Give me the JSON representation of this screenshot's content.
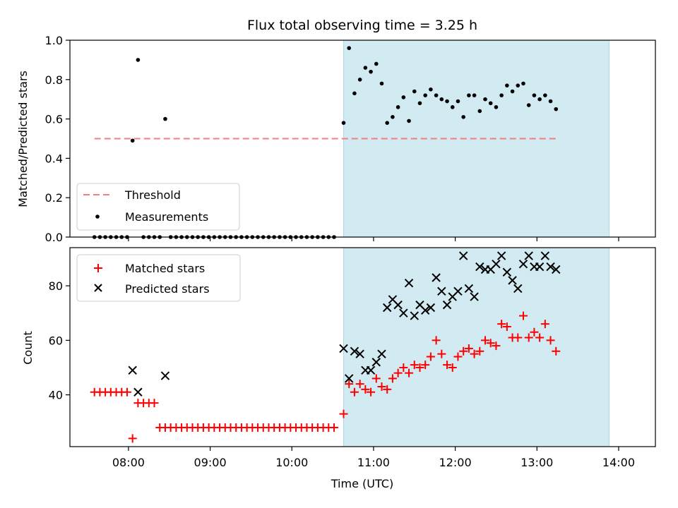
{
  "chart_data": {
    "title": "Flux total observing time = 3.25 h",
    "xlabel": "Time (UTC)",
    "x_ticks": [
      "08:00",
      "09:00",
      "10:00",
      "11:00",
      "12:00",
      "13:00",
      "14:00"
    ],
    "xlim": [
      "07:17",
      "14:27"
    ],
    "shaded_interval": [
      "10:38",
      "13:53"
    ],
    "colors": {
      "threshold": "#f08080",
      "measurements": "#000000",
      "matched": "#ff0000",
      "predicted": "#000000",
      "shade": "#add8e6"
    },
    "top": {
      "type": "scatter",
      "ylabel": "Matched/Predicted stars",
      "ylim": [
        0,
        1.0
      ],
      "y_ticks": [
        "0.0",
        "0.2",
        "0.4",
        "0.6",
        "0.8",
        "1.0"
      ],
      "threshold": 0.5,
      "legend": {
        "threshold": "Threshold",
        "measurements": "Measurements"
      },
      "points": [
        [
          "07:35",
          0
        ],
        [
          "07:39",
          0
        ],
        [
          "07:43",
          0
        ],
        [
          "07:47",
          0
        ],
        [
          "07:51",
          0
        ],
        [
          "07:55",
          0
        ],
        [
          "07:59",
          0
        ],
        [
          "08:03",
          0.49
        ],
        [
          "08:07",
          0.9
        ],
        [
          "08:11",
          0
        ],
        [
          "08:15",
          0
        ],
        [
          "08:19",
          0
        ],
        [
          "08:23",
          0
        ],
        [
          "08:27",
          0.6
        ],
        [
          "08:31",
          0
        ],
        [
          "08:35",
          0
        ],
        [
          "08:39",
          0
        ],
        [
          "08:43",
          0
        ],
        [
          "08:47",
          0
        ],
        [
          "08:51",
          0
        ],
        [
          "08:55",
          0
        ],
        [
          "08:59",
          0
        ],
        [
          "09:03",
          0
        ],
        [
          "09:07",
          0
        ],
        [
          "09:11",
          0
        ],
        [
          "09:15",
          0
        ],
        [
          "09:19",
          0
        ],
        [
          "09:23",
          0
        ],
        [
          "09:27",
          0
        ],
        [
          "09:31",
          0
        ],
        [
          "09:35",
          0
        ],
        [
          "09:39",
          0
        ],
        [
          "09:43",
          0
        ],
        [
          "09:47",
          0
        ],
        [
          "09:51",
          0
        ],
        [
          "09:55",
          0
        ],
        [
          "09:59",
          0
        ],
        [
          "10:03",
          0
        ],
        [
          "10:07",
          0
        ],
        [
          "10:11",
          0
        ],
        [
          "10:15",
          0
        ],
        [
          "10:19",
          0
        ],
        [
          "10:23",
          0
        ],
        [
          "10:27",
          0
        ],
        [
          "10:31",
          0
        ],
        [
          "10:38",
          0.58
        ],
        [
          "10:42",
          0.96
        ],
        [
          "10:46",
          0.73
        ],
        [
          "10:50",
          0.8
        ],
        [
          "10:54",
          0.86
        ],
        [
          "10:58",
          0.84
        ],
        [
          "11:02",
          0.88
        ],
        [
          "11:06",
          0.78
        ],
        [
          "11:10",
          0.58
        ],
        [
          "11:14",
          0.61
        ],
        [
          "11:18",
          0.66
        ],
        [
          "11:22",
          0.71
        ],
        [
          "11:26",
          0.59
        ],
        [
          "11:30",
          0.74
        ],
        [
          "11:34",
          0.68
        ],
        [
          "11:38",
          0.72
        ],
        [
          "11:42",
          0.75
        ],
        [
          "11:46",
          0.72
        ],
        [
          "11:50",
          0.7
        ],
        [
          "11:54",
          0.69
        ],
        [
          "11:58",
          0.66
        ],
        [
          "12:02",
          0.69
        ],
        [
          "12:06",
          0.61
        ],
        [
          "12:10",
          0.72
        ],
        [
          "12:14",
          0.72
        ],
        [
          "12:18",
          0.64
        ],
        [
          "12:22",
          0.7
        ],
        [
          "12:26",
          0.68
        ],
        [
          "12:30",
          0.66
        ],
        [
          "12:34",
          0.72
        ],
        [
          "12:38",
          0.77
        ],
        [
          "12:42",
          0.74
        ],
        [
          "12:46",
          0.77
        ],
        [
          "12:50",
          0.78
        ],
        [
          "12:54",
          0.67
        ],
        [
          "12:58",
          0.72
        ],
        [
          "13:02",
          0.7
        ],
        [
          "13:06",
          0.72
        ],
        [
          "13:10",
          0.69
        ],
        [
          "13:14",
          0.65
        ]
      ]
    },
    "bottom": {
      "type": "scatter",
      "ylabel": "Count",
      "ylim": [
        21,
        94
      ],
      "y_ticks": [
        "40",
        "60",
        "80"
      ],
      "legend": {
        "matched": "Matched stars",
        "predicted": "Predicted stars"
      },
      "matched": [
        [
          "07:35",
          41
        ],
        [
          "07:39",
          41
        ],
        [
          "07:43",
          41
        ],
        [
          "07:47",
          41
        ],
        [
          "07:51",
          41
        ],
        [
          "07:55",
          41
        ],
        [
          "07:59",
          41
        ],
        [
          "08:03",
          24
        ],
        [
          "08:07",
          37
        ],
        [
          "08:11",
          37
        ],
        [
          "08:15",
          37
        ],
        [
          "08:19",
          37
        ],
        [
          "08:23",
          28
        ],
        [
          "08:27",
          28
        ],
        [
          "08:31",
          28
        ],
        [
          "08:35",
          28
        ],
        [
          "08:39",
          28
        ],
        [
          "08:43",
          28
        ],
        [
          "08:47",
          28
        ],
        [
          "08:51",
          28
        ],
        [
          "08:55",
          28
        ],
        [
          "08:59",
          28
        ],
        [
          "09:03",
          28
        ],
        [
          "09:07",
          28
        ],
        [
          "09:11",
          28
        ],
        [
          "09:15",
          28
        ],
        [
          "09:19",
          28
        ],
        [
          "09:23",
          28
        ],
        [
          "09:27",
          28
        ],
        [
          "09:31",
          28
        ],
        [
          "09:35",
          28
        ],
        [
          "09:39",
          28
        ],
        [
          "09:43",
          28
        ],
        [
          "09:47",
          28
        ],
        [
          "09:51",
          28
        ],
        [
          "09:55",
          28
        ],
        [
          "09:59",
          28
        ],
        [
          "10:03",
          28
        ],
        [
          "10:07",
          28
        ],
        [
          "10:11",
          28
        ],
        [
          "10:15",
          28
        ],
        [
          "10:19",
          28
        ],
        [
          "10:23",
          28
        ],
        [
          "10:27",
          28
        ],
        [
          "10:31",
          28
        ],
        [
          "10:38",
          33
        ],
        [
          "10:42",
          44
        ],
        [
          "10:46",
          41
        ],
        [
          "10:50",
          44
        ],
        [
          "10:54",
          42
        ],
        [
          "10:58",
          41
        ],
        [
          "11:02",
          46
        ],
        [
          "11:06",
          43
        ],
        [
          "11:10",
          42
        ],
        [
          "11:14",
          46
        ],
        [
          "11:18",
          48
        ],
        [
          "11:22",
          50
        ],
        [
          "11:26",
          48
        ],
        [
          "11:30",
          51
        ],
        [
          "11:34",
          50
        ],
        [
          "11:38",
          51
        ],
        [
          "11:42",
          54
        ],
        [
          "11:46",
          60
        ],
        [
          "11:50",
          55
        ],
        [
          "11:54",
          51
        ],
        [
          "11:58",
          50
        ],
        [
          "12:02",
          54
        ],
        [
          "12:06",
          56
        ],
        [
          "12:10",
          57
        ],
        [
          "12:14",
          55
        ],
        [
          "12:18",
          56
        ],
        [
          "12:22",
          60
        ],
        [
          "12:26",
          59
        ],
        [
          "12:30",
          58
        ],
        [
          "12:34",
          66
        ],
        [
          "12:38",
          65
        ],
        [
          "12:42",
          61
        ],
        [
          "12:46",
          61
        ],
        [
          "12:50",
          69
        ],
        [
          "12:54",
          61
        ],
        [
          "12:58",
          63
        ],
        [
          "13:02",
          61
        ],
        [
          "13:06",
          66
        ],
        [
          "13:10",
          60
        ],
        [
          "13:14",
          56
        ]
      ],
      "predicted": [
        [
          "08:03",
          49
        ],
        [
          "08:07",
          41
        ],
        [
          "08:27",
          47
        ],
        [
          "10:38",
          57
        ],
        [
          "10:42",
          46
        ],
        [
          "10:46",
          56
        ],
        [
          "10:50",
          55
        ],
        [
          "10:54",
          49
        ],
        [
          "10:58",
          49
        ],
        [
          "11:02",
          52
        ],
        [
          "11:06",
          55
        ],
        [
          "11:10",
          72
        ],
        [
          "11:14",
          75
        ],
        [
          "11:18",
          73
        ],
        [
          "11:22",
          70
        ],
        [
          "11:26",
          81
        ],
        [
          "11:30",
          69
        ],
        [
          "11:34",
          73
        ],
        [
          "11:38",
          71
        ],
        [
          "11:42",
          72
        ],
        [
          "11:46",
          83
        ],
        [
          "11:50",
          78
        ],
        [
          "11:54",
          73
        ],
        [
          "11:58",
          76
        ],
        [
          "12:02",
          78
        ],
        [
          "12:06",
          91
        ],
        [
          "12:10",
          79
        ],
        [
          "12:14",
          76
        ],
        [
          "12:18",
          87
        ],
        [
          "12:22",
          86
        ],
        [
          "12:26",
          86
        ],
        [
          "12:30",
          88
        ],
        [
          "12:34",
          91
        ],
        [
          "12:38",
          85
        ],
        [
          "12:42",
          82
        ],
        [
          "12:46",
          79
        ],
        [
          "12:50",
          88
        ],
        [
          "12:54",
          91
        ],
        [
          "12:58",
          87
        ],
        [
          "13:02",
          87
        ],
        [
          "13:06",
          91
        ],
        [
          "13:10",
          87
        ],
        [
          "13:14",
          86
        ]
      ]
    }
  }
}
